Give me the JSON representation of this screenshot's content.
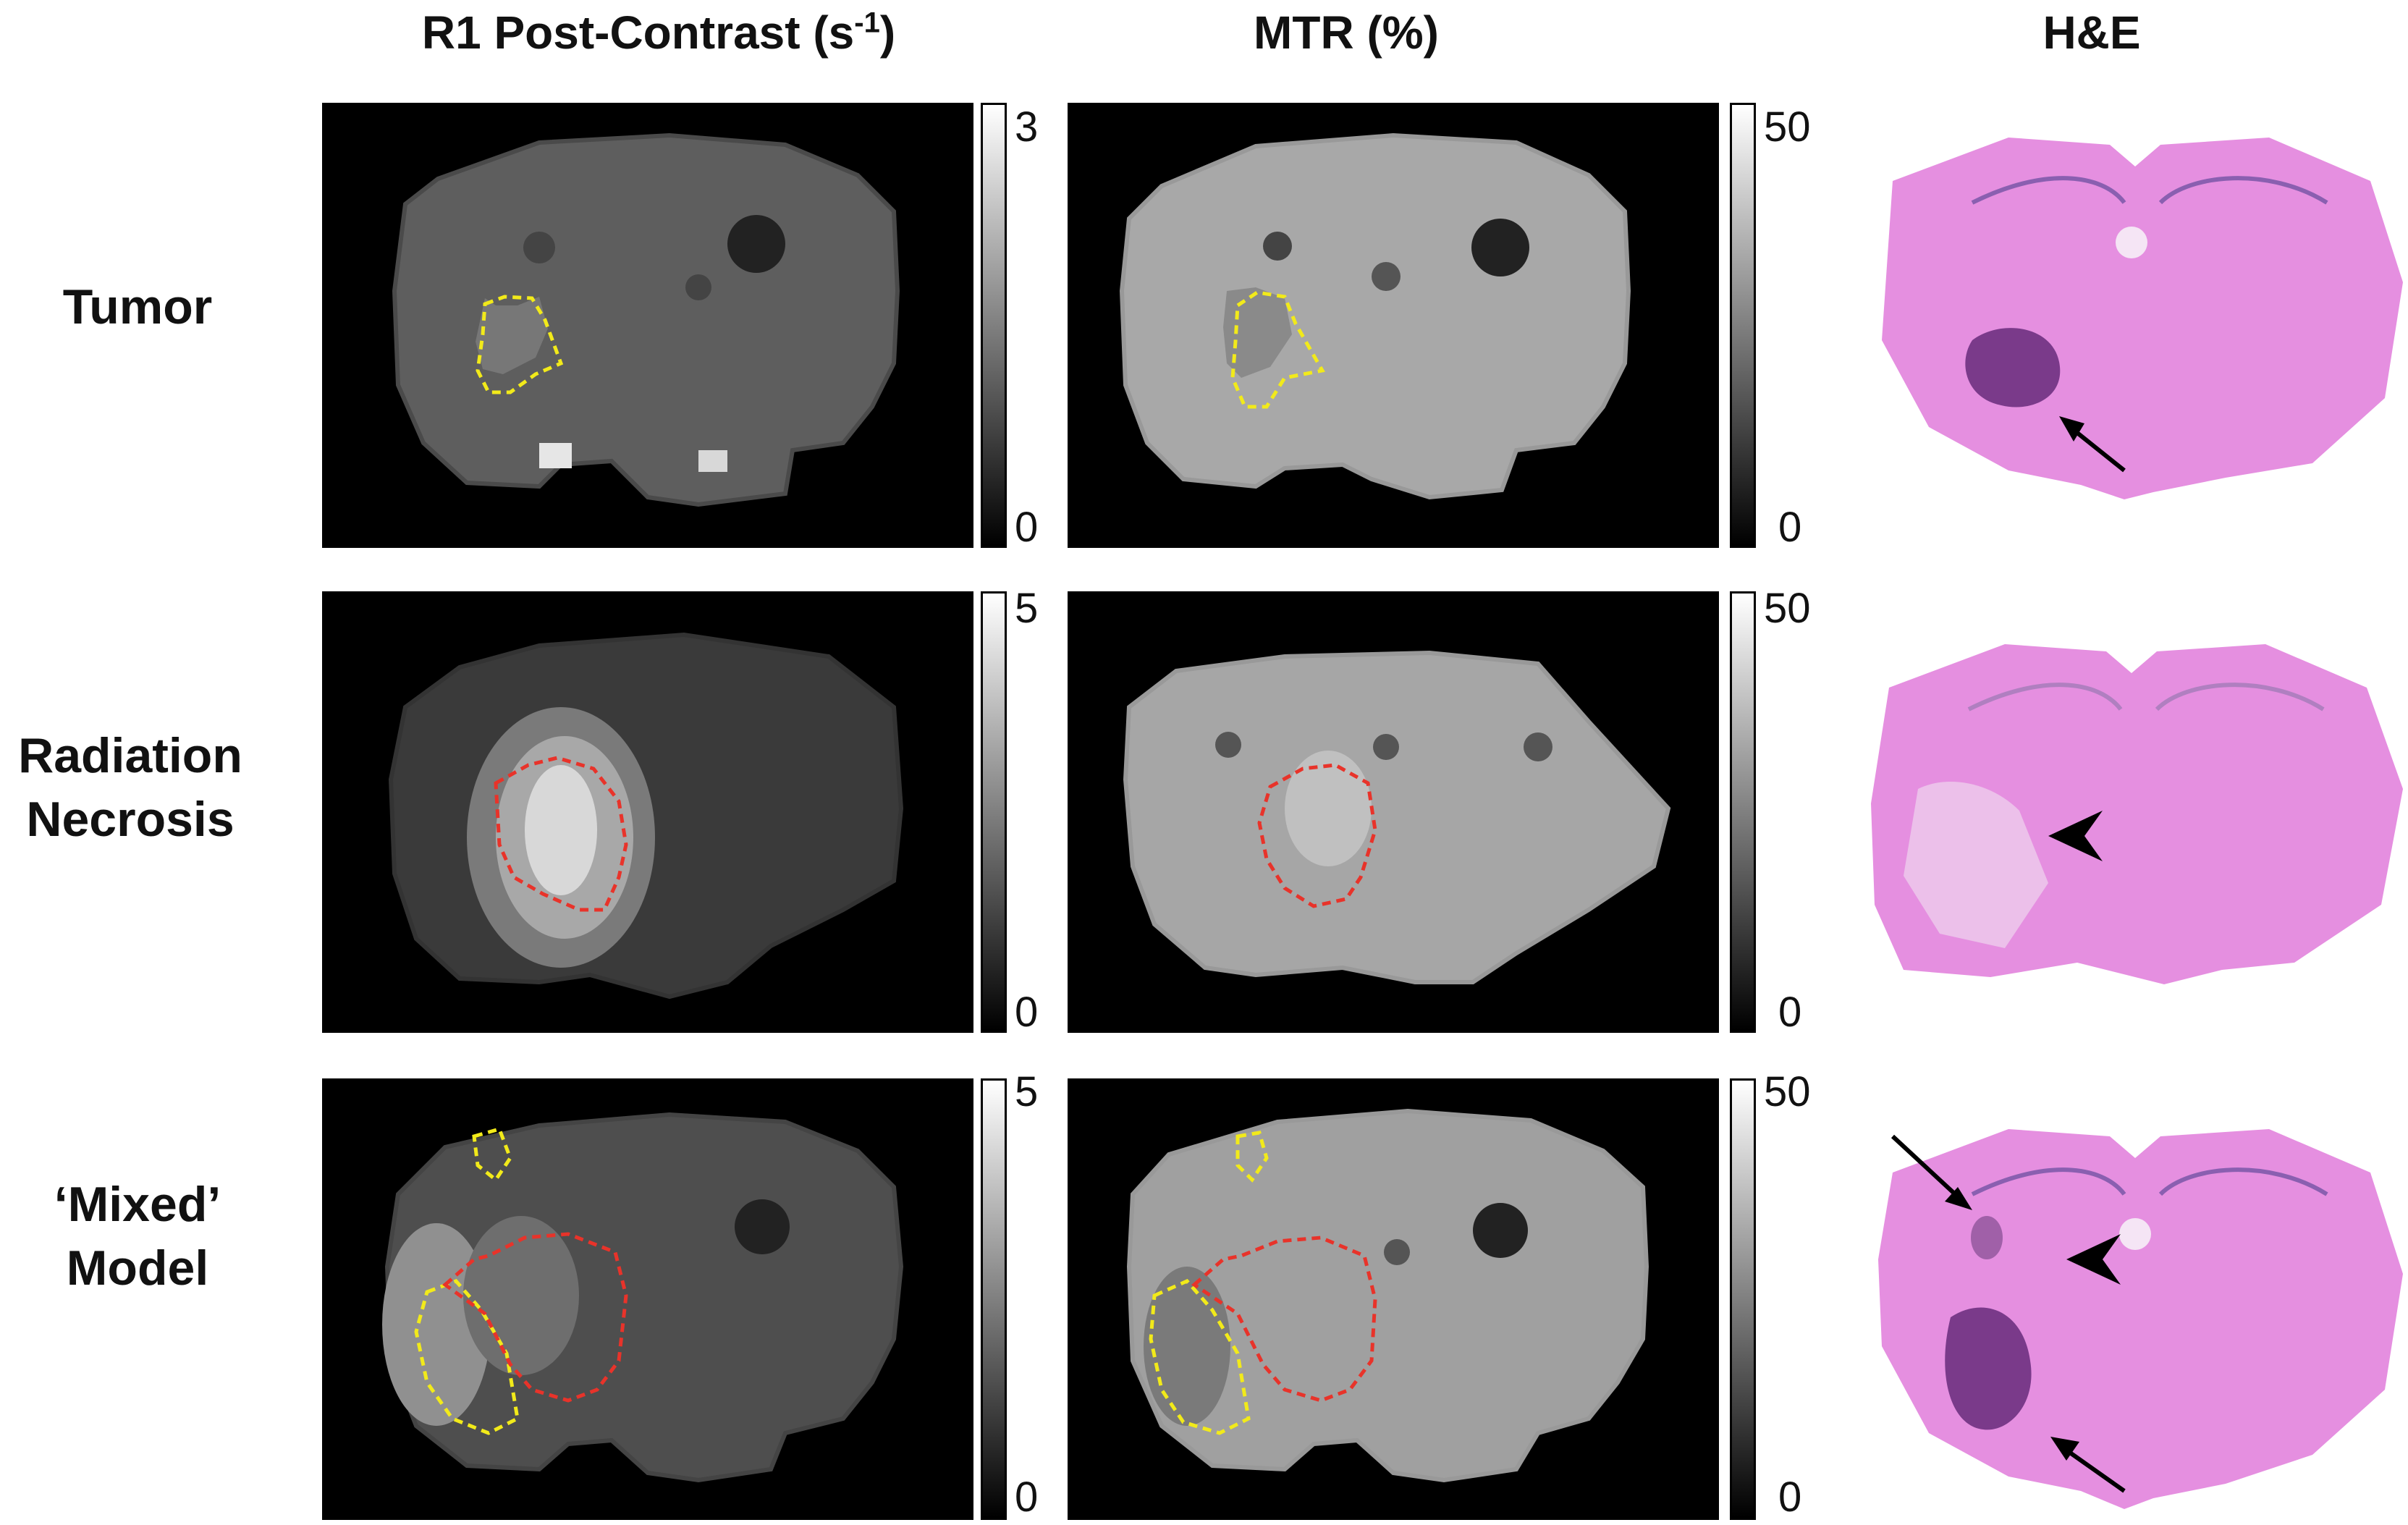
{
  "headers": {
    "r1": "R1 Post-Contrast (s",
    "r1_sup": "-1",
    "r1_close": ")",
    "mtr": "MTR (%)",
    "he": "H&E"
  },
  "rows": [
    {
      "label_line1": "Tumor",
      "label_line2": "",
      "r1_max": "3",
      "r1_min": "0",
      "mtr_max": "50",
      "mtr_min": "0"
    },
    {
      "label_line1": "Radiation",
      "label_line2": "Necrosis",
      "r1_max": "5",
      "r1_min": "0",
      "mtr_max": "50",
      "mtr_min": "0"
    },
    {
      "label_line1": "‘Mixed’",
      "label_line2": "Model",
      "r1_max": "5",
      "r1_min": "0",
      "mtr_max": "50",
      "mtr_min": "0"
    }
  ],
  "colors": {
    "tumor_roi": "#f2ea1a",
    "necrosis_roi": "#e8332a",
    "he_tissue": "#e58fe0",
    "he_dark": "#7a3a8a"
  }
}
